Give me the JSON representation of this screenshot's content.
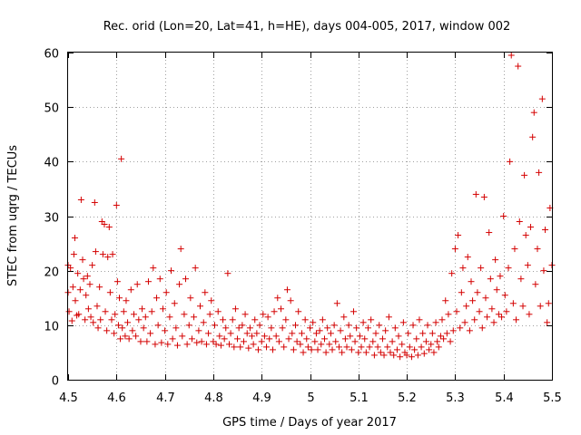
{
  "chart_data": {
    "type": "scatter",
    "title": "Rec. orid (Lon=20, Lat=41, h=HE), days 004-005, 2017, window 002",
    "xlabel": "GPS time / Days of year 2017",
    "ylabel": "STEC from uqrg / TECUs",
    "xlim": [
      4.5,
      5.5
    ],
    "ylim": [
      0,
      60
    ],
    "x_ticks": [
      "4.5",
      "4.6",
      "4.7",
      "4.8",
      "4.9",
      "5",
      "5.1",
      "5.2",
      "5.3",
      "5.4",
      "5.5"
    ],
    "y_ticks": [
      "0",
      "10",
      "20",
      "30",
      "40",
      "50",
      "60"
    ],
    "grid": true,
    "marker": "+",
    "color": "#d40000",
    "points": [
      [
        4.5,
        21.0
      ],
      [
        4.5,
        16.0
      ],
      [
        4.502,
        12.5
      ],
      [
        4.505,
        20.5
      ],
      [
        4.508,
        10.8
      ],
      [
        4.51,
        17.0
      ],
      [
        4.512,
        23.0
      ],
      [
        4.514,
        26.0
      ],
      [
        4.515,
        14.5
      ],
      [
        4.518,
        11.8
      ],
      [
        4.52,
        19.5
      ],
      [
        4.522,
        12.0
      ],
      [
        4.525,
        16.5
      ],
      [
        4.527,
        33.0
      ],
      [
        4.53,
        22.0
      ],
      [
        4.532,
        18.5
      ],
      [
        4.535,
        11.0
      ],
      [
        4.537,
        15.5
      ],
      [
        4.54,
        19.0
      ],
      [
        4.542,
        13.0
      ],
      [
        4.545,
        17.5
      ],
      [
        4.547,
        11.5
      ],
      [
        4.55,
        21.0
      ],
      [
        4.552,
        10.5
      ],
      [
        4.555,
        32.5
      ],
      [
        4.557,
        23.5
      ],
      [
        4.56,
        13.5
      ],
      [
        4.562,
        9.5
      ],
      [
        4.565,
        17.0
      ],
      [
        4.567,
        11.0
      ],
      [
        4.57,
        29.0
      ],
      [
        4.572,
        23.0
      ],
      [
        4.575,
        28.5
      ],
      [
        4.577,
        12.5
      ],
      [
        4.58,
        9.0
      ],
      [
        4.582,
        22.5
      ],
      [
        4.585,
        28.0
      ],
      [
        4.587,
        16.0
      ],
      [
        4.59,
        11.0
      ],
      [
        4.592,
        23.0
      ],
      [
        4.595,
        8.5
      ],
      [
        4.597,
        12.0
      ],
      [
        4.6,
        32.0
      ],
      [
        4.602,
        18.0
      ],
      [
        4.604,
        10.0
      ],
      [
        4.606,
        15.0
      ],
      [
        4.608,
        7.5
      ],
      [
        4.61,
        40.5
      ],
      [
        4.612,
        9.5
      ],
      [
        4.615,
        12.5
      ],
      [
        4.618,
        8.0
      ],
      [
        4.62,
        14.5
      ],
      [
        4.623,
        10.5
      ],
      [
        4.626,
        7.5
      ],
      [
        4.63,
        16.5
      ],
      [
        4.633,
        9.0
      ],
      [
        4.636,
        12.0
      ],
      [
        4.64,
        8.0
      ],
      [
        4.643,
        17.5
      ],
      [
        4.646,
        11.0
      ],
      [
        4.65,
        7.0
      ],
      [
        4.653,
        13.0
      ],
      [
        4.656,
        9.5
      ],
      [
        4.66,
        11.5
      ],
      [
        4.663,
        7.0
      ],
      [
        4.666,
        18.0
      ],
      [
        4.67,
        8.5
      ],
      [
        4.673,
        12.5
      ],
      [
        4.676,
        20.5
      ],
      [
        4.68,
        6.5
      ],
      [
        4.683,
        15.0
      ],
      [
        4.686,
        10.0
      ],
      [
        4.69,
        18.5
      ],
      [
        4.693,
        6.8
      ],
      [
        4.696,
        13.0
      ],
      [
        4.7,
        9.0
      ],
      [
        4.703,
        16.0
      ],
      [
        4.706,
        6.5
      ],
      [
        4.71,
        11.5
      ],
      [
        4.713,
        20.0
      ],
      [
        4.716,
        7.5
      ],
      [
        4.72,
        14.0
      ],
      [
        4.723,
        9.5
      ],
      [
        4.726,
        6.3
      ],
      [
        4.73,
        17.5
      ],
      [
        4.733,
        24.0
      ],
      [
        4.736,
        8.0
      ],
      [
        4.74,
        12.0
      ],
      [
        4.743,
        18.5
      ],
      [
        4.746,
        6.5
      ],
      [
        4.75,
        10.0
      ],
      [
        4.753,
        15.0
      ],
      [
        4.756,
        7.5
      ],
      [
        4.76,
        11.5
      ],
      [
        4.763,
        20.5
      ],
      [
        4.766,
        6.8
      ],
      [
        4.77,
        9.0
      ],
      [
        4.773,
        13.5
      ],
      [
        4.776,
        7.0
      ],
      [
        4.78,
        10.5
      ],
      [
        4.783,
        16.0
      ],
      [
        4.786,
        6.5
      ],
      [
        4.79,
        8.5
      ],
      [
        4.793,
        12.0
      ],
      [
        4.796,
        14.5
      ],
      [
        4.8,
        7.0
      ],
      [
        4.803,
        10.0
      ],
      [
        4.806,
        6.5
      ],
      [
        4.81,
        12.5
      ],
      [
        4.813,
        8.0
      ],
      [
        4.816,
        6.3
      ],
      [
        4.82,
        11.0
      ],
      [
        4.823,
        7.5
      ],
      [
        4.826,
        9.5
      ],
      [
        4.83,
        19.5
      ],
      [
        4.833,
        6.5
      ],
      [
        4.836,
        8.5
      ],
      [
        4.84,
        11.0
      ],
      [
        4.843,
        6.0
      ],
      [
        4.846,
        13.0
      ],
      [
        4.85,
        7.5
      ],
      [
        4.853,
        9.5
      ],
      [
        4.856,
        6.0
      ],
      [
        4.86,
        10.0
      ],
      [
        4.863,
        7.0
      ],
      [
        4.866,
        12.0
      ],
      [
        4.87,
        8.5
      ],
      [
        4.873,
        5.8
      ],
      [
        4.876,
        9.5
      ],
      [
        4.88,
        8.0
      ],
      [
        4.883,
        6.5
      ],
      [
        4.886,
        11.0
      ],
      [
        4.89,
        8.5
      ],
      [
        4.893,
        5.5
      ],
      [
        4.896,
        10.0
      ],
      [
        4.9,
        7.0
      ],
      [
        4.903,
        12.0
      ],
      [
        4.906,
        8.0
      ],
      [
        4.91,
        6.0
      ],
      [
        4.913,
        11.5
      ],
      [
        4.916,
        7.5
      ],
      [
        4.92,
        9.5
      ],
      [
        4.923,
        5.5
      ],
      [
        4.926,
        12.5
      ],
      [
        4.93,
        8.0
      ],
      [
        4.933,
        15.0
      ],
      [
        4.936,
        7.0
      ],
      [
        4.94,
        13.0
      ],
      [
        4.943,
        9.5
      ],
      [
        4.946,
        6.0
      ],
      [
        4.95,
        11.0
      ],
      [
        4.953,
        16.5
      ],
      [
        4.956,
        7.5
      ],
      [
        4.96,
        14.5
      ],
      [
        4.963,
        8.5
      ],
      [
        4.966,
        5.5
      ],
      [
        4.97,
        10.0
      ],
      [
        4.973,
        7.0
      ],
      [
        4.976,
        12.5
      ],
      [
        4.98,
        6.5
      ],
      [
        4.983,
        8.5
      ],
      [
        4.986,
        5.0
      ],
      [
        4.99,
        11.0
      ],
      [
        4.993,
        7.5
      ],
      [
        4.996,
        6.0
      ],
      [
        5.0,
        9.5
      ],
      [
        5.003,
        5.5
      ],
      [
        5.006,
        10.5
      ],
      [
        5.01,
        7.0
      ],
      [
        5.013,
        8.5
      ],
      [
        5.016,
        5.5
      ],
      [
        5.02,
        9.0
      ],
      [
        5.023,
        6.5
      ],
      [
        5.026,
        11.0
      ],
      [
        5.03,
        7.5
      ],
      [
        5.033,
        5.0
      ],
      [
        5.036,
        9.5
      ],
      [
        5.04,
        6.5
      ],
      [
        5.043,
        8.5
      ],
      [
        5.046,
        5.5
      ],
      [
        5.05,
        10.0
      ],
      [
        5.053,
        7.0
      ],
      [
        5.056,
        14.0
      ],
      [
        5.06,
        6.0
      ],
      [
        5.063,
        9.0
      ],
      [
        5.066,
        5.0
      ],
      [
        5.07,
        11.5
      ],
      [
        5.073,
        7.5
      ],
      [
        5.076,
        6.0
      ],
      [
        5.08,
        10.0
      ],
      [
        5.083,
        8.0
      ],
      [
        5.086,
        5.5
      ],
      [
        5.09,
        12.5
      ],
      [
        5.093,
        7.0
      ],
      [
        5.096,
        9.5
      ],
      [
        5.1,
        5.0
      ],
      [
        5.103,
        8.0
      ],
      [
        5.106,
        6.0
      ],
      [
        5.11,
        10.5
      ],
      [
        5.113,
        7.5
      ],
      [
        5.116,
        5.0
      ],
      [
        5.12,
        9.5
      ],
      [
        5.123,
        6.0
      ],
      [
        5.126,
        11.0
      ],
      [
        5.13,
        7.0
      ],
      [
        5.133,
        4.5
      ],
      [
        5.136,
        8.5
      ],
      [
        5.14,
        6.0
      ],
      [
        5.143,
        10.0
      ],
      [
        5.146,
        5.0
      ],
      [
        5.15,
        7.5
      ],
      [
        5.153,
        4.5
      ],
      [
        5.156,
        9.0
      ],
      [
        5.16,
        6.0
      ],
      [
        5.163,
        11.5
      ],
      [
        5.166,
        5.0
      ],
      [
        5.17,
        7.0
      ],
      [
        5.173,
        4.5
      ],
      [
        5.176,
        9.5
      ],
      [
        5.18,
        5.5
      ],
      [
        5.183,
        8.0
      ],
      [
        5.186,
        4.2
      ],
      [
        5.19,
        6.5
      ],
      [
        5.193,
        10.5
      ],
      [
        5.196,
        5.0
      ],
      [
        5.2,
        4.5
      ],
      [
        5.203,
        8.5
      ],
      [
        5.206,
        6.0
      ],
      [
        5.21,
        4.2
      ],
      [
        5.213,
        10.0
      ],
      [
        5.216,
        5.5
      ],
      [
        5.22,
        7.5
      ],
      [
        5.223,
        4.5
      ],
      [
        5.226,
        11.0
      ],
      [
        5.23,
        6.0
      ],
      [
        5.233,
        8.5
      ],
      [
        5.236,
        4.8
      ],
      [
        5.24,
        7.0
      ],
      [
        5.243,
        10.0
      ],
      [
        5.246,
        5.5
      ],
      [
        5.25,
        6.5
      ],
      [
        5.253,
        8.5
      ],
      [
        5.256,
        5.0
      ],
      [
        5.26,
        10.5
      ],
      [
        5.263,
        7.0
      ],
      [
        5.266,
        6.0
      ],
      [
        5.27,
        8.0
      ],
      [
        5.273,
        11.0
      ],
      [
        5.276,
        7.5
      ],
      [
        5.28,
        14.5
      ],
      [
        5.283,
        8.5
      ],
      [
        5.286,
        12.0
      ],
      [
        5.29,
        7.0
      ],
      [
        5.293,
        19.5
      ],
      [
        5.296,
        9.0
      ],
      [
        5.3,
        24.0
      ],
      [
        5.303,
        12.5
      ],
      [
        5.306,
        26.5
      ],
      [
        5.31,
        9.5
      ],
      [
        5.313,
        16.0
      ],
      [
        5.316,
        20.5
      ],
      [
        5.32,
        10.5
      ],
      [
        5.323,
        13.5
      ],
      [
        5.326,
        22.5
      ],
      [
        5.33,
        9.0
      ],
      [
        5.333,
        18.0
      ],
      [
        5.336,
        14.5
      ],
      [
        5.34,
        11.0
      ],
      [
        5.343,
        34.0
      ],
      [
        5.346,
        16.0
      ],
      [
        5.35,
        12.5
      ],
      [
        5.353,
        20.5
      ],
      [
        5.356,
        9.5
      ],
      [
        5.36,
        33.5
      ],
      [
        5.363,
        15.0
      ],
      [
        5.366,
        11.5
      ],
      [
        5.37,
        27.0
      ],
      [
        5.373,
        18.5
      ],
      [
        5.376,
        13.0
      ],
      [
        5.38,
        10.5
      ],
      [
        5.383,
        22.0
      ],
      [
        5.386,
        16.5
      ],
      [
        5.39,
        12.0
      ],
      [
        5.393,
        19.0
      ],
      [
        5.396,
        11.5
      ],
      [
        5.4,
        30.0
      ],
      [
        5.403,
        15.5
      ],
      [
        5.406,
        12.5
      ],
      [
        5.41,
        20.5
      ],
      [
        5.413,
        40.0
      ],
      [
        5.416,
        59.5
      ],
      [
        5.42,
        14.0
      ],
      [
        5.423,
        24.0
      ],
      [
        5.426,
        11.0
      ],
      [
        5.43,
        57.5
      ],
      [
        5.433,
        29.0
      ],
      [
        5.436,
        18.5
      ],
      [
        5.44,
        13.5
      ],
      [
        5.443,
        37.5
      ],
      [
        5.446,
        26.5
      ],
      [
        5.45,
        21.0
      ],
      [
        5.453,
        12.0
      ],
      [
        5.456,
        28.0
      ],
      [
        5.46,
        44.5
      ],
      [
        5.463,
        49.0
      ],
      [
        5.466,
        17.5
      ],
      [
        5.47,
        24.0
      ],
      [
        5.473,
        38.0
      ],
      [
        5.476,
        13.5
      ],
      [
        5.48,
        51.5
      ],
      [
        5.483,
        20.0
      ],
      [
        5.486,
        27.5
      ],
      [
        5.49,
        10.5
      ],
      [
        5.493,
        14.0
      ],
      [
        5.496,
        31.5
      ],
      [
        5.5,
        21.0
      ]
    ]
  }
}
